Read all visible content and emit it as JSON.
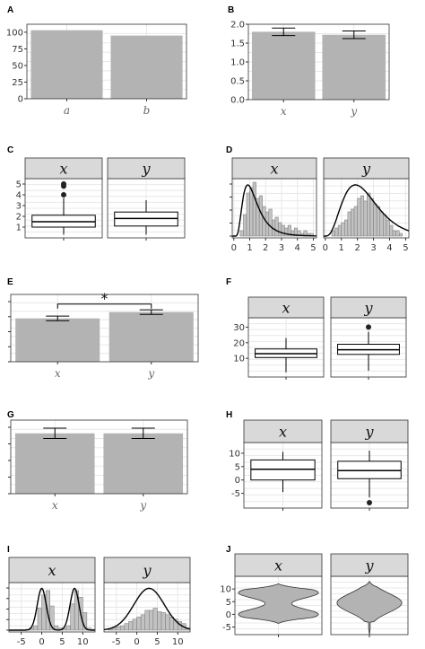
{
  "colors": {
    "bar": "#b3b3b3",
    "grid": "#e8e8e8",
    "strip": "#d9d9d9",
    "frame": "#333333",
    "hist": "#c2c2c2",
    "line": "#000000"
  },
  "chart_data": [
    {
      "panel": "A",
      "type": "bar",
      "categories": [
        "a",
        "b"
      ],
      "values": [
        103,
        95
      ],
      "ylim": [
        0,
        112
      ],
      "yticks": [
        "0",
        "25",
        "50",
        "75",
        "100"
      ],
      "grid": true
    },
    {
      "panel": "B",
      "type": "bar",
      "categories": [
        "x",
        "y"
      ],
      "values": [
        1.8,
        1.72
      ],
      "errors": [
        0.1,
        0.1
      ],
      "ylim": [
        0,
        2.0
      ],
      "yticks": [
        "0.0",
        "0.5",
        "1.0",
        "1.5",
        "2.0"
      ],
      "grid": true
    },
    {
      "panel": "C",
      "type": "box",
      "facets": [
        "x",
        "y"
      ],
      "boxes": [
        {
          "min": 0.3,
          "q1": 1.0,
          "med": 1.5,
          "q3": 2.1,
          "max": 3.7,
          "outliers": [
            4.0,
            4.8,
            5.0
          ]
        },
        {
          "min": 0.3,
          "q1": 1.1,
          "med": 1.8,
          "q3": 2.4,
          "max": 3.5,
          "outliers": []
        }
      ],
      "ylim": [
        0,
        5.5
      ],
      "yticks": [
        "1",
        "2",
        "3",
        "4",
        "5"
      ],
      "grid": true
    },
    {
      "panel": "D",
      "type": "histogram",
      "facets": [
        "x",
        "y"
      ],
      "xlim": [
        -0.1,
        5.2
      ],
      "ymax": 1.0,
      "xticks": [
        "0",
        "1",
        "2",
        "3",
        "4",
        "5"
      ],
      "binwidth": 0.2,
      "counts": [
        [
          0,
          0,
          0.1,
          0.4,
          0.8,
          0.9,
          1.0,
          0.7,
          0.75,
          0.55,
          0.45,
          0.5,
          0.3,
          0.35,
          0.25,
          0.2,
          0.15,
          0.2,
          0.1,
          0.15,
          0.1,
          0.05,
          0.1,
          0.05,
          0.05
        ],
        [
          0,
          0,
          0.1,
          0.15,
          0.2,
          0.25,
          0.3,
          0.45,
          0.5,
          0.55,
          0.7,
          0.75,
          0.65,
          0.8,
          0.7,
          0.6,
          0.55,
          0.45,
          0.4,
          0.3,
          0.2,
          0.1,
          0.1,
          0.05,
          0
        ]
      ],
      "density": [
        "lognormal",
        "gamma"
      ],
      "grid": true
    },
    {
      "panel": "E",
      "type": "bar",
      "categories": [
        "x",
        "y"
      ],
      "values": [
        0.76,
        0.87
      ],
      "errors": [
        0.04,
        0.04
      ],
      "ylim": [
        0,
        1.18
      ],
      "yticks": [],
      "annotation": "*",
      "grid": true
    },
    {
      "panel": "F",
      "type": "box",
      "facets": [
        "x",
        "y"
      ],
      "boxes": [
        {
          "min": 1,
          "q1": 10.5,
          "med": 13,
          "q3": 16,
          "max": 23,
          "outliers": []
        },
        {
          "min": 2,
          "q1": 12.5,
          "med": 15.5,
          "q3": 19,
          "max": 27,
          "outliers": [
            30
          ]
        }
      ],
      "ylim": [
        -2,
        36
      ],
      "yticks": [
        "10",
        "20",
        "30"
      ],
      "grid": true
    },
    {
      "panel": "G",
      "type": "bar",
      "categories": [
        "x",
        "y"
      ],
      "values": [
        0.82,
        0.82
      ],
      "errors": [
        0.07,
        0.07
      ],
      "ylim": [
        0,
        1.0
      ],
      "yticks": [],
      "grid": true
    },
    {
      "panel": "H",
      "type": "box",
      "facets": [
        "x",
        "y"
      ],
      "boxes": [
        {
          "min": -4.5,
          "q1": 0,
          "med": 4,
          "q3": 7.5,
          "max": 10.5,
          "outliers": []
        },
        {
          "min": -6.5,
          "q1": 0.5,
          "med": 3.5,
          "q3": 7,
          "max": 11,
          "outliers": [
            -8.5
          ]
        }
      ],
      "ylim": [
        -10.5,
        14
      ],
      "yticks": [
        "-5",
        "0",
        "5",
        "10"
      ],
      "grid": true
    },
    {
      "panel": "I",
      "type": "histogram",
      "facets": [
        "x",
        "y"
      ],
      "xlim": [
        -8,
        13
      ],
      "ymax": 1.0,
      "xticks": [
        "-5",
        "0",
        "5",
        "10"
      ],
      "binwidth": 1,
      "counts": [
        [
          0,
          0,
          0,
          0,
          0.02,
          0.05,
          0.1,
          0.5,
          0.8,
          0.9,
          0.55,
          0.1,
          0.05,
          0.05,
          0.1,
          0.6,
          0.9,
          0.75,
          0.4,
          0.05,
          0.02
        ],
        [
          0,
          0.02,
          0.05,
          0.08,
          0.1,
          0.15,
          0.2,
          0.25,
          0.3,
          0.35,
          0.45,
          0.45,
          0.5,
          0.42,
          0.4,
          0.35,
          0.3,
          0.25,
          0.2,
          0.15,
          0.05
        ]
      ],
      "density": [
        "bimodal",
        "normal"
      ],
      "grid": true
    },
    {
      "panel": "J",
      "type": "violin",
      "facets": [
        "x",
        "y"
      ],
      "ylim": [
        -8,
        15
      ],
      "yticks": [
        "-5",
        "0",
        "5",
        "10"
      ],
      "grid": true
    }
  ]
}
